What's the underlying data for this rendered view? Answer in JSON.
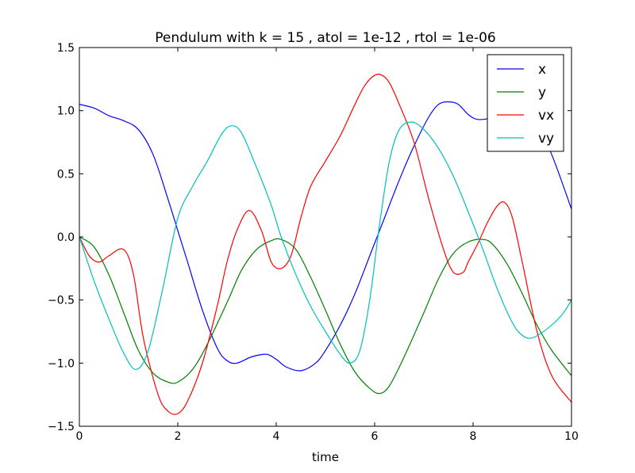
{
  "chart_data": {
    "type": "line",
    "title": "Pendulum with k = 15 , atol = 1e-12 , rtol = 1e-06",
    "xlabel": "time",
    "ylabel": "",
    "xlim": [
      0,
      10
    ],
    "ylim": [
      -1.5,
      1.5
    ],
    "xticks": [
      "0",
      "2",
      "4",
      "6",
      "8",
      "10"
    ],
    "yticks": [
      "−1.5",
      "−1.0",
      "−0.5",
      "0.0",
      "0.5",
      "1.0",
      "1.5"
    ],
    "grid": false,
    "legend_position": "top-right",
    "series": [
      {
        "name": "x",
        "color": "#0000ff",
        "x": [
          0,
          0.3,
          0.6,
          0.9,
          1.2,
          1.5,
          1.8,
          2.0,
          2.2,
          2.5,
          2.8,
          3.0,
          3.2,
          3.5,
          3.8,
          4.0,
          4.2,
          4.5,
          4.8,
          5.0,
          5.3,
          5.6,
          5.9,
          6.2,
          6.5,
          6.8,
          7.1,
          7.3,
          7.5,
          7.7,
          7.9,
          8.1,
          8.4,
          8.6,
          8.8,
          9.0,
          9.3,
          9.6,
          10.0
        ],
        "y": [
          1.05,
          1.02,
          0.96,
          0.92,
          0.85,
          0.65,
          0.3,
          0.05,
          -0.2,
          -0.58,
          -0.88,
          -0.98,
          -1.0,
          -0.95,
          -0.93,
          -0.97,
          -1.03,
          -1.06,
          -1.0,
          -0.9,
          -0.7,
          -0.45,
          -0.15,
          0.15,
          0.45,
          0.72,
          0.95,
          1.05,
          1.07,
          1.05,
          0.97,
          0.93,
          0.95,
          1.02,
          1.05,
          1.0,
          0.88,
          0.65,
          0.22
        ]
      },
      {
        "name": "y",
        "color": "#008000",
        "x": [
          0,
          0.3,
          0.6,
          0.9,
          1.2,
          1.5,
          1.8,
          2.0,
          2.3,
          2.6,
          3.0,
          3.3,
          3.6,
          3.9,
          4.1,
          4.4,
          4.7,
          5.0,
          5.3,
          5.6,
          5.9,
          6.1,
          6.3,
          6.6,
          7.0,
          7.3,
          7.6,
          7.9,
          8.2,
          8.4,
          8.7,
          9.0,
          9.3,
          9.6,
          10.0
        ],
        "y": [
          0.0,
          -0.08,
          -0.3,
          -0.6,
          -0.9,
          -1.08,
          -1.15,
          -1.15,
          -1.05,
          -0.85,
          -0.52,
          -0.26,
          -0.1,
          -0.03,
          -0.02,
          -0.1,
          -0.32,
          -0.58,
          -0.85,
          -1.07,
          -1.2,
          -1.24,
          -1.18,
          -0.95,
          -0.6,
          -0.33,
          -0.13,
          -0.04,
          -0.02,
          -0.06,
          -0.22,
          -0.45,
          -0.7,
          -0.9,
          -1.1
        ]
      },
      {
        "name": "vx",
        "color": "#ff0000",
        "x": [
          0,
          0.2,
          0.4,
          0.6,
          0.9,
          1.1,
          1.3,
          1.6,
          1.8,
          2.0,
          2.2,
          2.5,
          2.8,
          3.0,
          3.2,
          3.45,
          3.7,
          3.9,
          4.1,
          4.3,
          4.5,
          4.7,
          5.0,
          5.3,
          5.6,
          5.8,
          6.0,
          6.15,
          6.3,
          6.5,
          6.8,
          7.1,
          7.4,
          7.6,
          7.8,
          7.9,
          8.1,
          8.3,
          8.5,
          8.65,
          8.8,
          9.0,
          9.3,
          9.6,
          10.0
        ],
        "y": [
          0.0,
          -0.15,
          -0.2,
          -0.15,
          -0.1,
          -0.3,
          -0.8,
          -1.25,
          -1.38,
          -1.4,
          -1.3,
          -1.0,
          -0.55,
          -0.2,
          0.05,
          0.21,
          0.05,
          -0.2,
          -0.25,
          -0.15,
          0.15,
          0.4,
          0.6,
          0.8,
          1.05,
          1.2,
          1.28,
          1.28,
          1.22,
          1.05,
          0.75,
          0.3,
          -0.1,
          -0.28,
          -0.28,
          -0.2,
          -0.05,
          0.12,
          0.25,
          0.27,
          0.15,
          -0.2,
          -0.75,
          -1.1,
          -1.31
        ]
      },
      {
        "name": "vy",
        "color": "#00bfbf",
        "x": [
          0,
          0.3,
          0.6,
          0.9,
          1.15,
          1.4,
          1.7,
          2.0,
          2.3,
          2.6,
          2.9,
          3.1,
          3.3,
          3.6,
          3.9,
          4.1,
          4.4,
          4.7,
          5.0,
          5.3,
          5.5,
          5.7,
          5.9,
          6.1,
          6.3,
          6.5,
          6.75,
          7.0,
          7.3,
          7.6,
          7.9,
          8.2,
          8.5,
          8.8,
          9.0,
          9.2,
          9.5,
          9.8,
          10.0
        ],
        "y": [
          0.0,
          -0.35,
          -0.65,
          -0.92,
          -1.05,
          -0.9,
          -0.4,
          0.15,
          0.4,
          0.6,
          0.82,
          0.88,
          0.82,
          0.55,
          0.25,
          0.0,
          -0.3,
          -0.55,
          -0.75,
          -0.93,
          -1.0,
          -0.9,
          -0.5,
          0.1,
          0.6,
          0.85,
          0.91,
          0.85,
          0.7,
          0.48,
          0.2,
          -0.1,
          -0.42,
          -0.68,
          -0.78,
          -0.8,
          -0.73,
          -0.62,
          -0.5
        ]
      }
    ]
  }
}
